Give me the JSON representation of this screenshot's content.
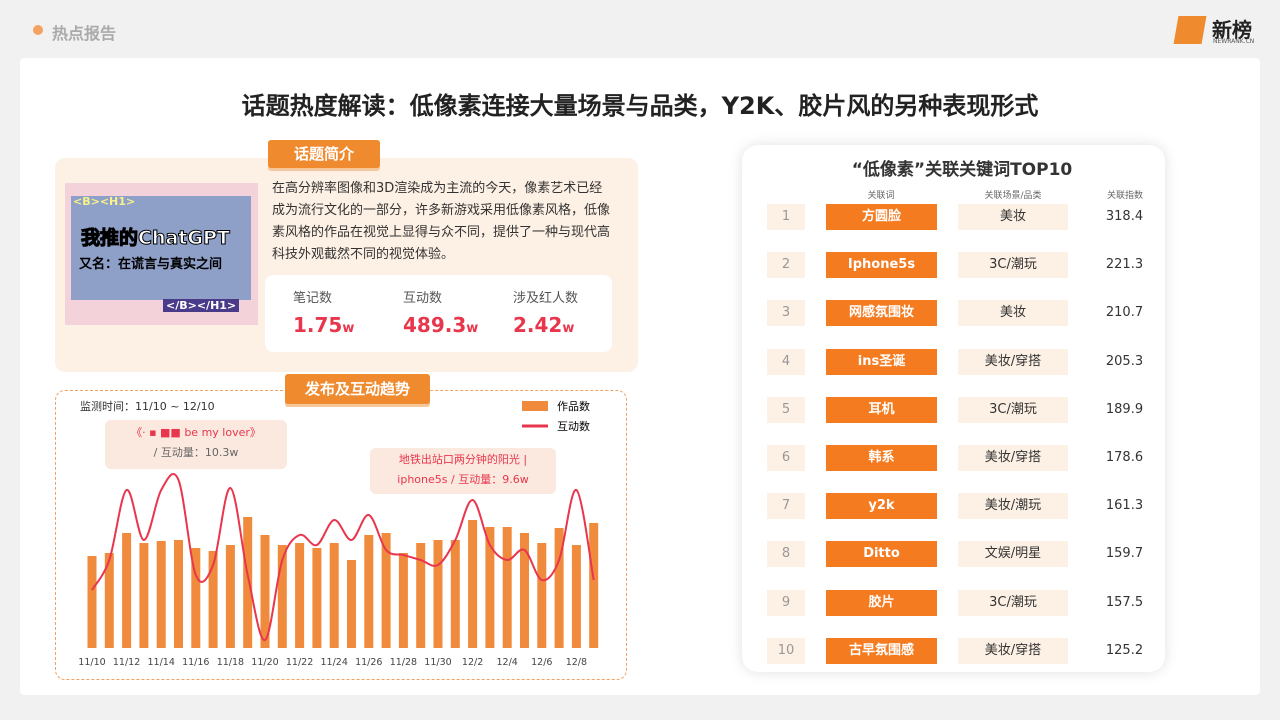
{
  "header": {
    "section": "热点报告",
    "logo": "新榜",
    "logo_sub": "NEWRANK.CN"
  },
  "title": "话题热度解读：低像素连接大量场景与品类，Y2K、胶片风的另种表现形式",
  "intro": {
    "tag": "话题简介",
    "image": {
      "top_code": "<B><H1>",
      "title": "我推的ChatGPT",
      "subtitle": "又名：在谎言与真实之间",
      "bottom_code": "</B></H1>"
    },
    "text": "在高分辨率图像和3D渲染成为主流的今天，像素艺术已经成为流行文化的一部分，许多新游戏采用低像素风格，低像素风格的作品在视觉上显得与众不同，提供了一种与现代高科技外观截然不同的视觉体验。",
    "stats": [
      {
        "label": "笔记数",
        "value": 1.75,
        "unit": "w"
      },
      {
        "label": "互动数",
        "value": 489.3,
        "unit": "w"
      },
      {
        "label": "涉及红人数",
        "value": 2.42,
        "unit": "w"
      }
    ]
  },
  "chart_data": {
    "type": "bar_line",
    "tag": "发布及互动趋势",
    "period": "监测时间：11/10 ~ 12/10",
    "categories": [
      "11/10",
      null,
      "11/12",
      null,
      "11/14",
      null,
      "11/16",
      null,
      "11/18",
      null,
      "11/20",
      null,
      "11/22",
      null,
      "11/24",
      null,
      "11/26",
      null,
      "11/28",
      null,
      "11/30",
      null,
      "12/2",
      null,
      "12/4",
      null,
      "12/6",
      null,
      "12/8",
      null
    ],
    "series": [
      {
        "name": "作品数",
        "color": "#f08a3c",
        "values": [
          92,
          95,
          115,
          105,
          107,
          108,
          100,
          97,
          103,
          131,
          113,
          103,
          105,
          100,
          105,
          88,
          113,
          115,
          95,
          105,
          108,
          108,
          128,
          121,
          121,
          115,
          105,
          120,
          103,
          125
        ]
      },
      {
        "name": "互动数",
        "color": "#e8364d",
        "values": [
          58,
          88,
          158,
          108,
          158,
          168,
          73,
          83,
          160,
          73,
          8,
          88,
          113,
          103,
          128,
          108,
          133,
          98,
          93,
          88,
          83,
          108,
          148,
          103,
          88,
          98,
          68,
          88,
          158,
          68
        ]
      }
    ],
    "ylim": [
      0,
      200
    ],
    "annotations": [
      {
        "line1": "《· ▪ ■■ be my lover》",
        "line2": "/ 互动量：10.3w"
      },
      {
        "line1": "地铁出站口两分钟的阳光 |",
        "line2": "iphone5s / 互动量：9.6w"
      }
    ]
  },
  "keywords": {
    "title": "“低像素”关联关键词TOP10",
    "headers": [
      "关联词",
      "关联场景/品类",
      "关联指数"
    ],
    "rows": [
      [
        1,
        "方圆脸",
        "美妆",
        318.4
      ],
      [
        2,
        "Iphone5s",
        "3C/潮玩",
        221.3
      ],
      [
        3,
        "网感氛围妆",
        "美妆",
        210.7
      ],
      [
        4,
        "ins圣诞",
        "美妆/穿搭",
        205.3
      ],
      [
        5,
        "耳机",
        "3C/潮玩",
        189.9
      ],
      [
        6,
        "韩系",
        "美妆/穿搭",
        178.6
      ],
      [
        7,
        "y2k",
        "美妆/潮玩",
        161.3
      ],
      [
        8,
        "Ditto",
        "文娱/明星",
        159.7
      ],
      [
        9,
        "胶片",
        "3C/潮玩",
        157.5
      ],
      [
        10,
        "古早氛围感",
        "美妆/穿搭",
        125.2
      ]
    ]
  }
}
